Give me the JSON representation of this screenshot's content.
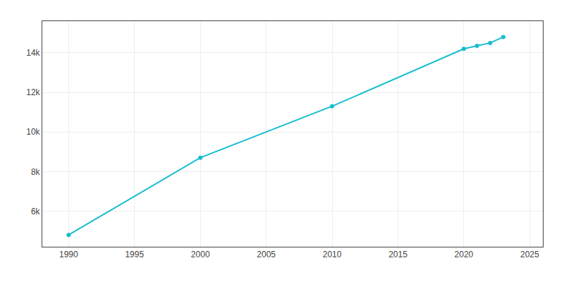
{
  "chart_data": {
    "type": "line",
    "x": [
      1990,
      2000,
      2010,
      2020,
      2021,
      2022,
      2023
    ],
    "values": [
      4800,
      8700,
      11300,
      14200,
      14350,
      14500,
      14800
    ],
    "color": "#17becf",
    "marker": "circle",
    "xlim": [
      1988,
      2026
    ],
    "ylim": [
      4200,
      15600
    ],
    "xticks": [
      1990,
      1995,
      2000,
      2005,
      2010,
      2015,
      2020,
      2025
    ],
    "yticks": [
      {
        "value": 6000,
        "label": "6k"
      },
      {
        "value": 8000,
        "label": "8k"
      },
      {
        "value": 10000,
        "label": "10k"
      },
      {
        "value": 12000,
        "label": "12k"
      },
      {
        "value": 14000,
        "label": "14k"
      }
    ],
    "grid": true
  }
}
